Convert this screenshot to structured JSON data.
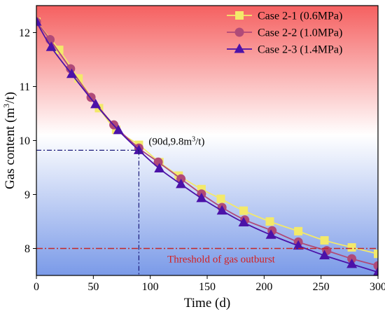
{
  "colors": {
    "case1": "#f3e96a",
    "case2": "#b04a78",
    "case3": "#4b12a8",
    "threshold": "#c42828",
    "guide": "#1a1a7a",
    "bg_top": "#f56060",
    "bg_bottom": "#7a9ae8"
  },
  "chart_data": {
    "type": "line",
    "xlabel": "Time (d)",
    "ylabel": "Gas content (m3/t)",
    "ylabel_parts": {
      "main": "Gas content (m",
      "sup": "3",
      "tail": "/t)"
    },
    "xlim": [
      0,
      300
    ],
    "ylim": [
      7.5,
      12.5
    ],
    "xticks": [
      "0",
      "50",
      "100",
      "150",
      "200",
      "250",
      "300"
    ],
    "yticks": [
      "8",
      "9",
      "10",
      "11",
      "12"
    ],
    "legend_position": "top-right",
    "series": [
      {
        "name": "Case 2-1 (0.6MPa)",
        "marker": "square",
        "x": [
          0,
          20,
          37,
          55,
          70,
          90,
          108,
          125,
          145,
          162,
          182,
          205,
          230,
          253,
          277,
          300
        ],
        "y": [
          12.2,
          11.68,
          11.15,
          10.6,
          10.2,
          9.92,
          9.6,
          9.35,
          9.1,
          8.92,
          8.7,
          8.5,
          8.32,
          8.15,
          8.02,
          7.9
        ]
      },
      {
        "name": "Case 2-2 (1.0MPa)",
        "marker": "circle",
        "x": [
          0,
          12,
          30,
          48,
          68,
          90,
          107,
          127,
          145,
          163,
          183,
          207,
          230,
          255,
          277,
          300
        ],
        "y": [
          12.2,
          11.87,
          11.33,
          10.8,
          10.29,
          9.86,
          9.6,
          9.29,
          9.01,
          8.76,
          8.53,
          8.33,
          8.12,
          7.96,
          7.81,
          7.68
        ]
      },
      {
        "name": "Case 2-3 (1.4MPa)",
        "marker": "triangle",
        "x": [
          0,
          13,
          31,
          52,
          72,
          90,
          108,
          127,
          145,
          163,
          182,
          206,
          230,
          253,
          277,
          300
        ],
        "y": [
          12.2,
          11.73,
          11.23,
          10.67,
          10.19,
          9.82,
          9.48,
          9.19,
          8.93,
          8.7,
          8.48,
          8.25,
          8.05,
          7.87,
          7.71,
          7.56
        ]
      }
    ],
    "threshold": {
      "y": 8.0,
      "label": "Threshold of gas outburst"
    },
    "annotation": {
      "x": 90,
      "y": 9.82,
      "label_main": "(90d,9.8m",
      "label_sup": "3",
      "label_tail": "/t)"
    }
  }
}
